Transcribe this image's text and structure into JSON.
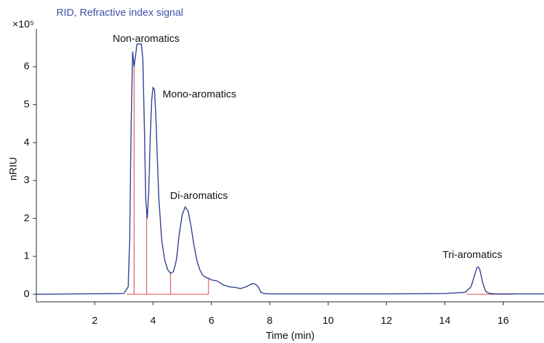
{
  "chart_data": {
    "type": "line",
    "title": "RID, Refractive index signal",
    "xlabel": "Time (min)",
    "ylabel": "nRIU",
    "y_multiplier": "×10⁵",
    "xlim": [
      0,
      17.4
    ],
    "ylim": [
      -0.2,
      7.0
    ],
    "xticks": [
      2,
      4,
      6,
      8,
      10,
      12,
      14,
      16
    ],
    "yticks": [
      0,
      1,
      2,
      3,
      4,
      5,
      6
    ],
    "color": "#2b3a93",
    "x": [
      0,
      3.0,
      3.15,
      3.2,
      3.25,
      3.3,
      3.35,
      3.4,
      3.45,
      3.5,
      3.55,
      3.6,
      3.65,
      3.7,
      3.75,
      3.8,
      3.85,
      3.9,
      3.95,
      4.0,
      4.05,
      4.1,
      4.15,
      4.2,
      4.3,
      4.4,
      4.5,
      4.6,
      4.7,
      4.8,
      4.9,
      5.0,
      5.1,
      5.2,
      5.3,
      5.4,
      5.5,
      5.6,
      5.7,
      5.8,
      5.9,
      6.0,
      6.2,
      6.4,
      6.6,
      6.8,
      7.0,
      7.2,
      7.4,
      7.5,
      7.6,
      7.7,
      7.8,
      8,
      10,
      12,
      14,
      14.7,
      14.9,
      15.0,
      15.1,
      15.15,
      15.2,
      15.3,
      15.4,
      15.5,
      15.7,
      16,
      17.4
    ],
    "values": [
      0,
      0.02,
      0.2,
      1.5,
      4.5,
      6.4,
      6.0,
      6.3,
      6.6,
      6.6,
      6.6,
      6.6,
      6.2,
      4.5,
      2.5,
      2.0,
      2.7,
      4.0,
      5.1,
      5.45,
      5.4,
      4.6,
      3.5,
      2.5,
      1.4,
      0.9,
      0.65,
      0.55,
      0.6,
      0.9,
      1.6,
      2.1,
      2.3,
      2.2,
      1.8,
      1.3,
      0.9,
      0.65,
      0.5,
      0.45,
      0.42,
      0.38,
      0.35,
      0.25,
      0.2,
      0.18,
      0.15,
      0.2,
      0.28,
      0.27,
      0.2,
      0.05,
      0.02,
      0.01,
      0.01,
      0.01,
      0.02,
      0.05,
      0.2,
      0.45,
      0.7,
      0.72,
      0.65,
      0.3,
      0.08,
      0.03,
      0.01,
      0.01,
      0.01
    ],
    "annotations": [
      "Non-aromatics",
      "Mono-aromatics",
      "Di-aromatics",
      "Tri-aromatics"
    ],
    "integration": {
      "color": "#e03a3a",
      "drop_lines": [
        3.35,
        3.78,
        4.6,
        5.9
      ],
      "baselines": [
        [
          3.1,
          5.9
        ],
        [
          14.75,
          16.35
        ]
      ]
    }
  }
}
